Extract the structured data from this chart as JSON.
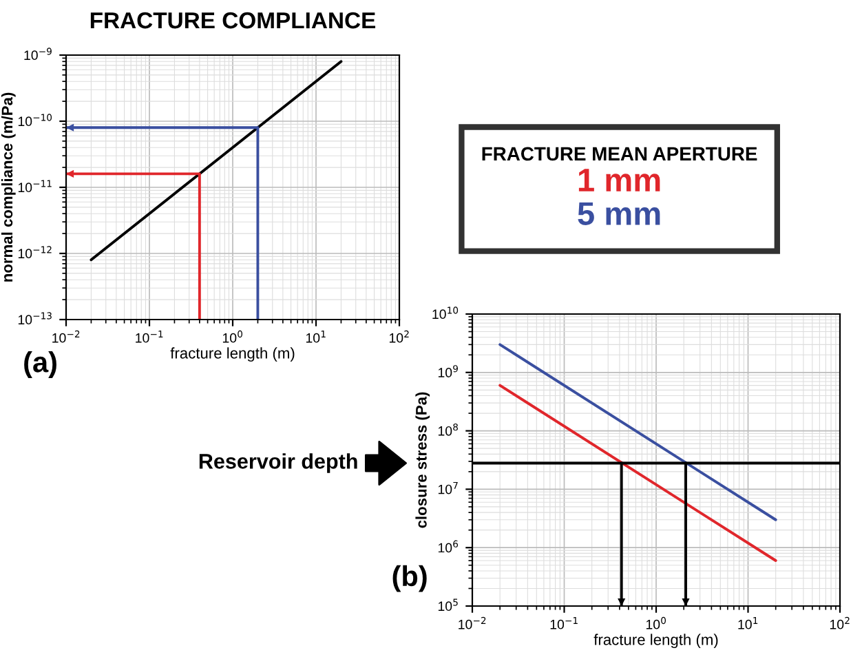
{
  "chart_data": [
    {
      "type": "line",
      "title": "FRACTURE COMPLIANCE",
      "xlabel": "fracture length (m)",
      "ylabel": "normal compliance (m/Pa)",
      "log": "xy",
      "grid": true,
      "xlim": [
        0.01,
        100
      ],
      "ylim": [
        1e-13,
        1e-09
      ],
      "xticks": [
        {
          "value": 0.01,
          "label": "10$^{−2}$"
        },
        {
          "value": 0.1,
          "label": "10$^{−1}$"
        },
        {
          "value": 1,
          "label": "10$^{0}$"
        },
        {
          "value": 10,
          "label": "10$^{1}$"
        },
        {
          "value": 100,
          "label": "10$^{2}$"
        }
      ],
      "yticks": [
        {
          "value": 1e-13,
          "label": "10$^{−13}$"
        },
        {
          "value": 1e-12,
          "label": "10$^{−12}$"
        },
        {
          "value": 1e-11,
          "label": "10$^{−11}$"
        },
        {
          "value": 1e-10,
          "label": "10$^{−10}$"
        },
        {
          "value": 1e-09,
          "label": "10$^{−9}$"
        }
      ],
      "series": [
        {
          "color": "#000000",
          "x": [
            0.02,
            20
          ],
          "values": [
            8e-13,
            8e-10
          ]
        },
        {
          "color": "#e0262b",
          "x": [
            0.4,
            0.4,
            0.01
          ],
          "values": [
            1e-13,
            1.6e-11,
            1.6e-11
          ]
        },
        {
          "color": "#3a4fa0",
          "x": [
            2,
            2,
            0.01
          ],
          "values": [
            1e-13,
            8e-11,
            8e-11
          ]
        }
      ],
      "annotations": [
        "(a)"
      ]
    },
    {
      "type": "line",
      "xlabel": "fracture length (m)",
      "ylabel": "closure stress (Pa)",
      "log": "xy",
      "grid": true,
      "legend": "top",
      "legend_title": "FRACTURE MEAN APERTURE",
      "xlim": [
        0.01,
        100
      ],
      "ylim": [
        100000.0,
        10000000000.0
      ],
      "xticks": [
        {
          "value": 0.01,
          "label": "10$^{−2}$"
        },
        {
          "value": 0.1,
          "label": "10$^{−1}$"
        },
        {
          "value": 1,
          "label": "10$^{0}$"
        },
        {
          "value": 10,
          "label": "10$^{1}$"
        },
        {
          "value": 100,
          "label": "10$^{2}$"
        }
      ],
      "yticks": [
        {
          "value": 100000.0,
          "label": "10$^{5}$"
        },
        {
          "value": 1000000.0,
          "label": "10$^{6}$"
        },
        {
          "value": 10000000.0,
          "label": "10$^{7}$"
        },
        {
          "value": 100000000.0,
          "label": "10$^{8}$"
        },
        {
          "value": 1000000000.0,
          "label": "10$^{9}$"
        },
        {
          "value": 10000000000.0,
          "label": "10$^{10}$"
        }
      ],
      "series": [
        {
          "name": "1 mm",
          "color": "#e0262b",
          "x": [
            0.02,
            20
          ],
          "values": [
            600000000.0,
            600000.0
          ]
        },
        {
          "name": "5 mm",
          "color": "#3a4fa0",
          "x": [
            0.02,
            20
          ],
          "values": [
            3000000000.0,
            3000000.0
          ]
        },
        {
          "color": "#000000",
          "x": [
            0.42,
            0.42
          ],
          "values": [
            28000000.0,
            100000.0
          ]
        },
        {
          "color": "#000000",
          "x": [
            2.1,
            2.1
          ],
          "values": [
            28000000.0,
            100000.0
          ]
        }
      ],
      "ref_lines": [
        {
          "axis": "y",
          "value": 28000000.0,
          "label": "Reservoir depth",
          "color": "#000000"
        }
      ],
      "annotations": [
        "(b)"
      ]
    }
  ]
}
